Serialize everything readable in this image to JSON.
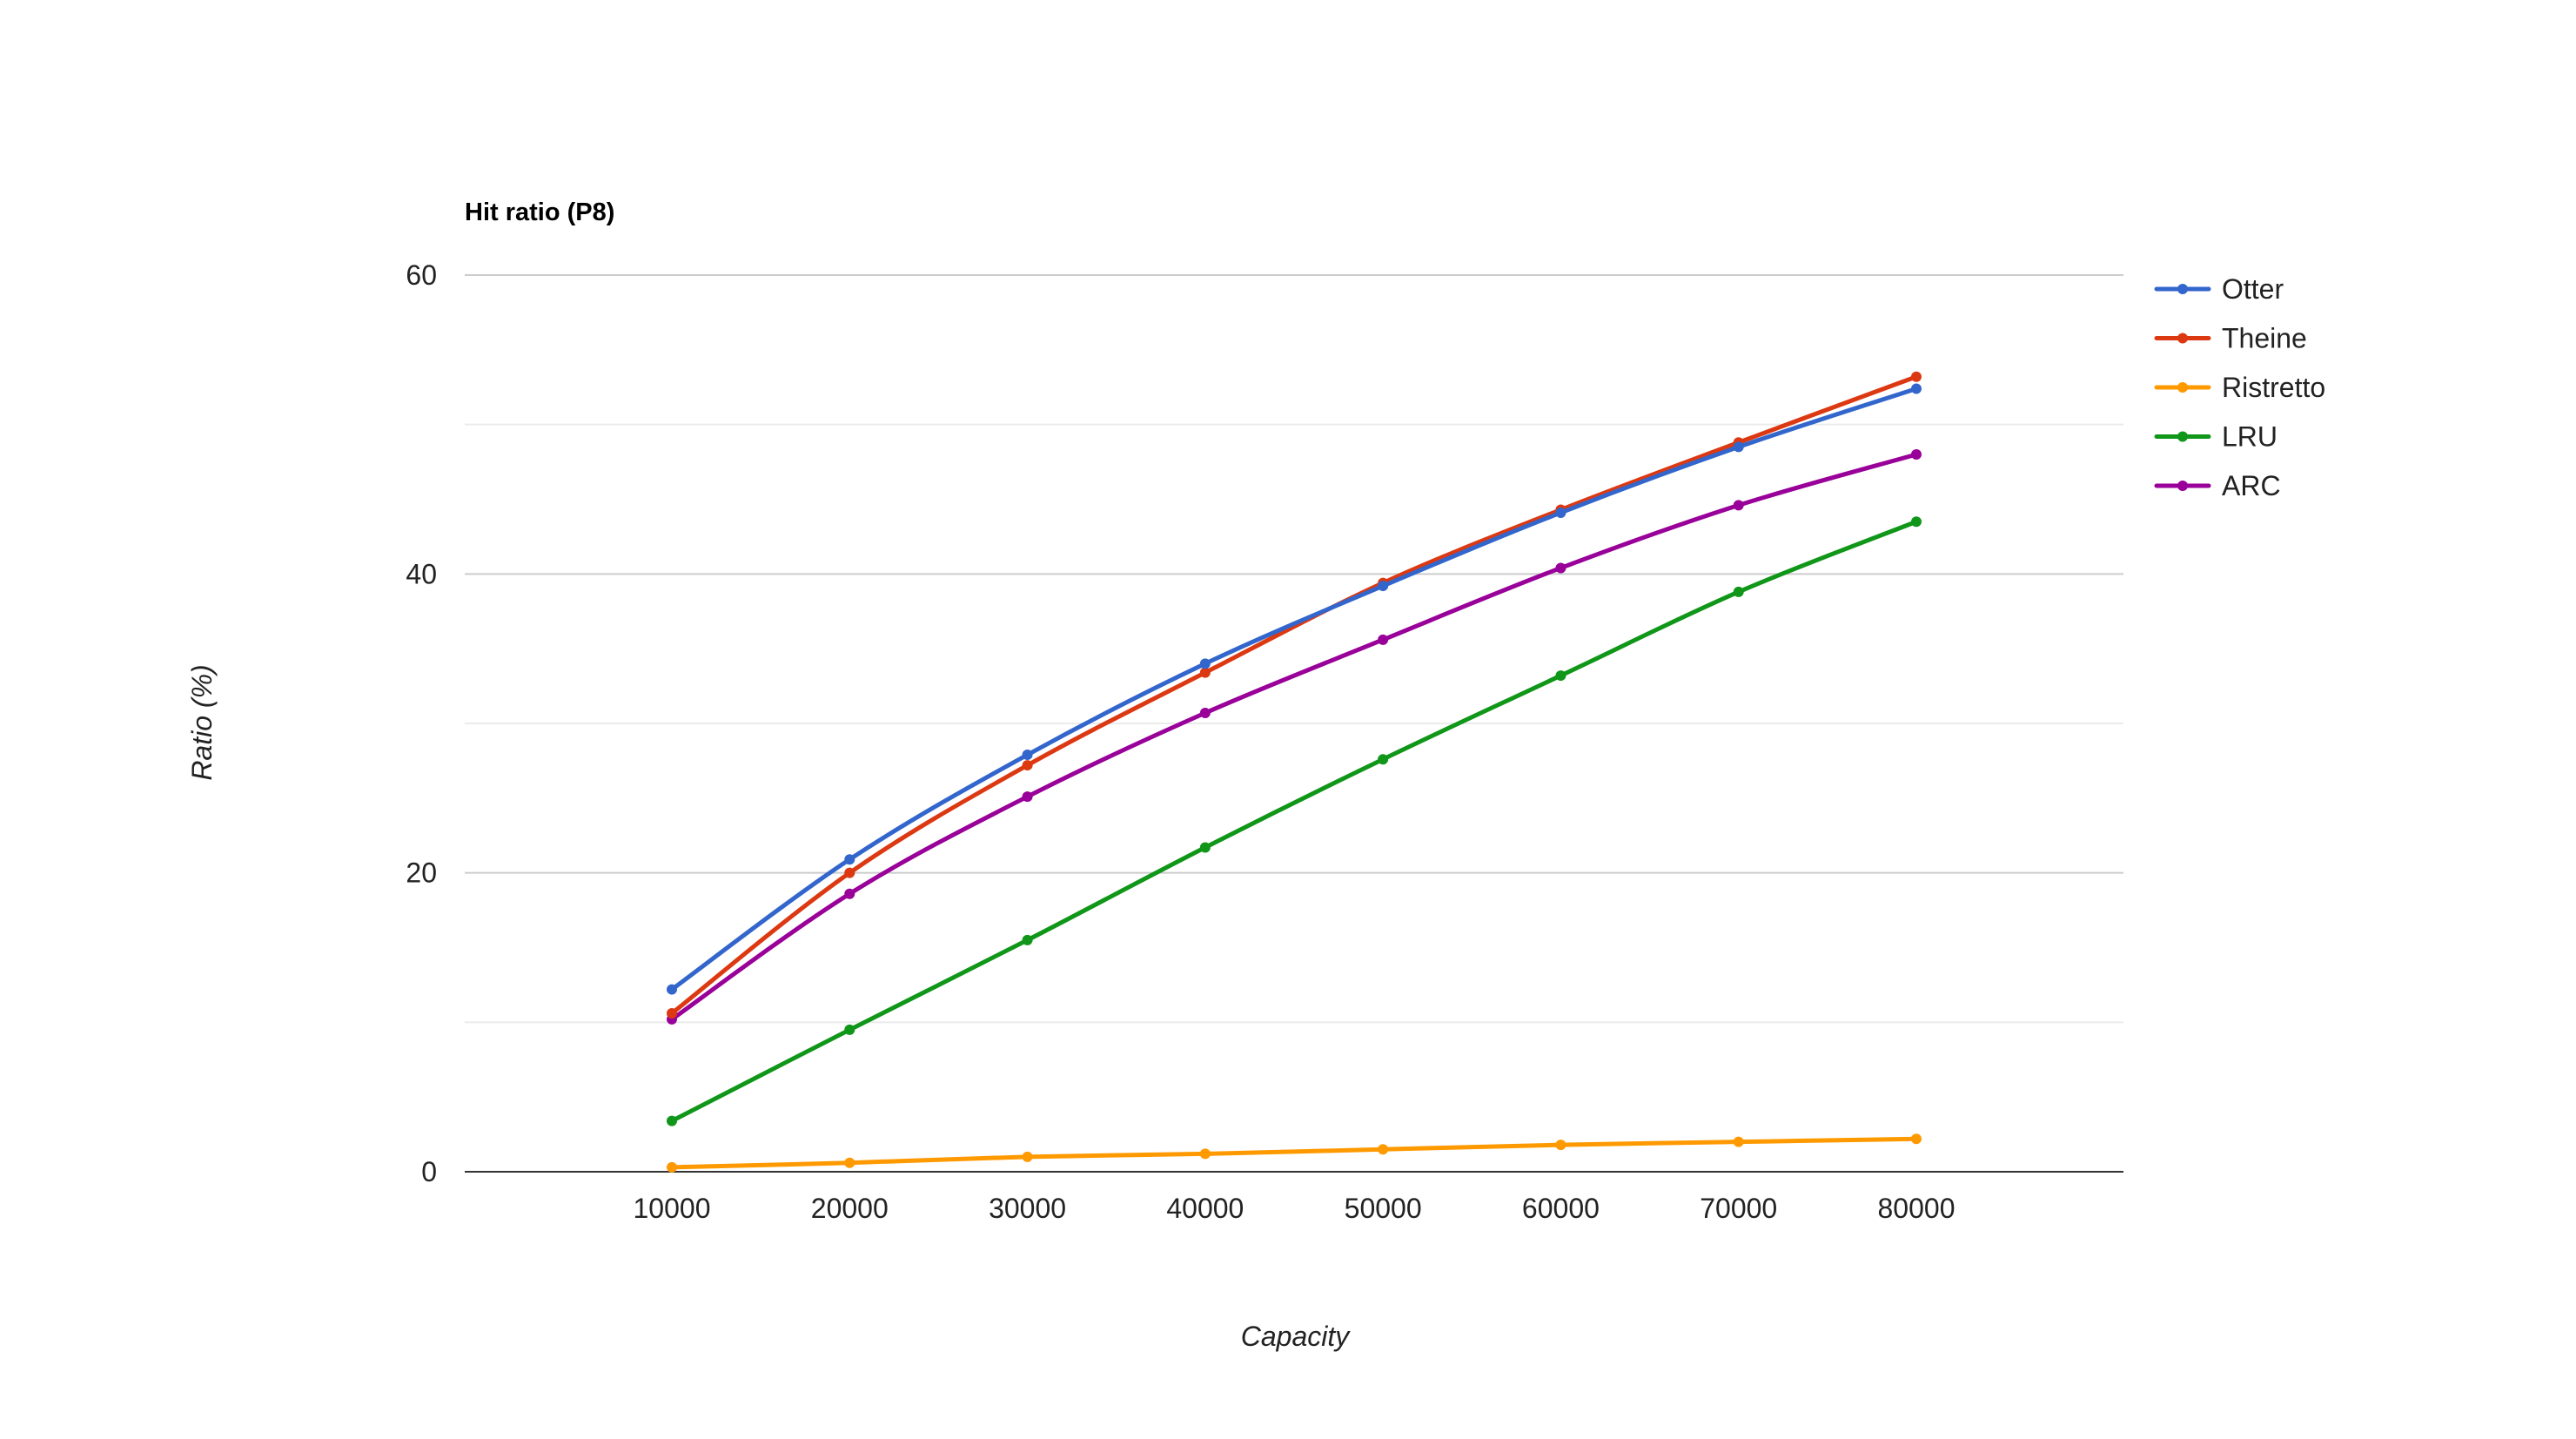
{
  "chart_data": {
    "type": "line",
    "title": "Hit ratio (P8)",
    "xlabel": "Capacity",
    "ylabel": "Ratio (%)",
    "x": [
      10000,
      20000,
      30000,
      40000,
      50000,
      60000,
      70000,
      80000
    ],
    "x_tick_labels": [
      "10000",
      "20000",
      "30000",
      "40000",
      "50000",
      "60000",
      "70000",
      "80000"
    ],
    "ylim": [
      0,
      60
    ],
    "y_ticks": [
      0,
      20,
      40,
      60
    ],
    "y_tick_labels": [
      "0",
      "20",
      "40",
      "60"
    ],
    "grid": true,
    "legend_position": "right",
    "series": [
      {
        "name": "Otter",
        "color": "#3366cc",
        "values": [
          12.2,
          20.9,
          27.9,
          34.0,
          39.2,
          44.1,
          48.5,
          52.4
        ]
      },
      {
        "name": "Theine",
        "color": "#dc3912",
        "values": [
          10.6,
          20.0,
          27.2,
          33.4,
          39.4,
          44.3,
          48.8,
          53.2
        ]
      },
      {
        "name": "Ristretto",
        "color": "#ff9900",
        "values": [
          0.3,
          0.6,
          1.0,
          1.2,
          1.5,
          1.8,
          2.0,
          2.2
        ]
      },
      {
        "name": "LRU",
        "color": "#109618",
        "values": [
          3.4,
          9.5,
          15.5,
          21.7,
          27.6,
          33.2,
          38.8,
          43.5
        ]
      },
      {
        "name": "ARC",
        "color": "#990099",
        "values": [
          10.2,
          18.6,
          25.1,
          30.7,
          35.6,
          40.4,
          44.6,
          48.0
        ]
      }
    ]
  }
}
